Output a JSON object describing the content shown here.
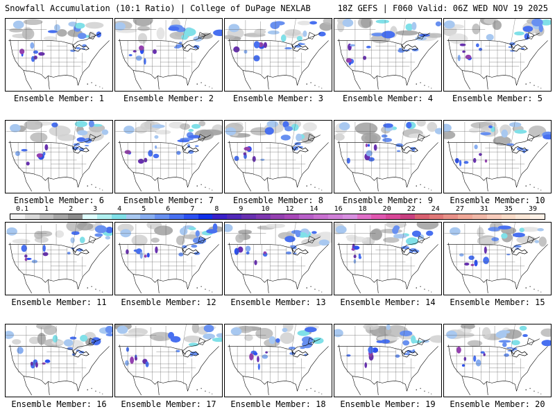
{
  "header": {
    "title": "Snowfall Accumulation (10:1 Ratio) | College of DuPage NEXLAB",
    "run_info": "18Z GEFS | F060 Valid: 06Z WED NOV 19 2025"
  },
  "panels": [
    {
      "member": 1,
      "label": "Ensemble Member: 1"
    },
    {
      "member": 2,
      "label": "Ensemble Member: 2"
    },
    {
      "member": 3,
      "label": "Ensemble Member: 3"
    },
    {
      "member": 4,
      "label": "Ensemble Member: 4"
    },
    {
      "member": 5,
      "label": "Ensemble Member: 5"
    },
    {
      "member": 6,
      "label": "Ensemble Member: 6"
    },
    {
      "member": 7,
      "label": "Ensemble Member: 7"
    },
    {
      "member": 8,
      "label": "Ensemble Member: 8"
    },
    {
      "member": 9,
      "label": "Ensemble Member: 9"
    },
    {
      "member": 10,
      "label": "Ensemble Member: 10"
    },
    {
      "member": 11,
      "label": "Ensemble Member: 11"
    },
    {
      "member": 12,
      "label": "Ensemble Member: 12"
    },
    {
      "member": 13,
      "label": "Ensemble Member: 13"
    },
    {
      "member": 14,
      "label": "Ensemble Member: 14"
    },
    {
      "member": 15,
      "label": "Ensemble Member: 15"
    },
    {
      "member": 16,
      "label": "Ensemble Member: 16"
    },
    {
      "member": 17,
      "label": "Ensemble Member: 17"
    },
    {
      "member": 18,
      "label": "Ensemble Member: 18"
    },
    {
      "member": 19,
      "label": "Ensemble Member: 19"
    },
    {
      "member": 20,
      "label": "Ensemble Member: 20"
    }
  ],
  "colorbar": {
    "labels": [
      "0.1",
      "1",
      "2",
      "3",
      "4",
      "5",
      "6",
      "7",
      "8",
      "9",
      "10",
      "12",
      "14",
      "16",
      "18",
      "20",
      "22",
      "24",
      "27",
      "31",
      "35",
      "39"
    ],
    "colors": [
      "#f2f2f2",
      "#d9d9d9",
      "#bfbfbf",
      "#a6a6a6",
      "#8c8c8c",
      "#e0ffff",
      "#b0f0f0",
      "#80e0e8",
      "#a8c8f0",
      "#88aef0",
      "#6890f0",
      "#4870f0",
      "#2c50f0",
      "#1030e8",
      "#3a20c8",
      "#5028b8",
      "#6830b0",
      "#7e38b0",
      "#9440b0",
      "#a848b8",
      "#b860c8",
      "#c870d0",
      "#d080d8",
      "#d890e0",
      "#e070c8",
      "#e058b0",
      "#d84898",
      "#c84080",
      "#d86070",
      "#e07878",
      "#e89088",
      "#f0a898",
      "#f0b8a8",
      "#f8ccbc",
      "#fadcc8",
      "#fce8d8",
      "#fef2e8"
    ]
  }
}
